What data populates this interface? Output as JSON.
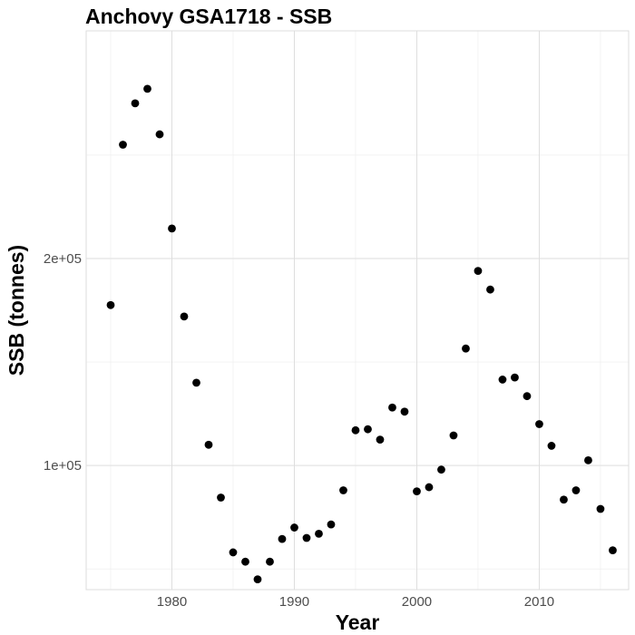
{
  "chart_data": {
    "type": "scatter",
    "title": "Anchovy GSA1718 - SSB",
    "xlabel": "Year",
    "ylabel": "SSB (tonnes)",
    "x_ticks": [
      1980,
      1990,
      2000,
      2010
    ],
    "x_tick_labels": [
      "1980",
      "1990",
      "2000",
      "2010"
    ],
    "y_ticks": [
      100000,
      200000
    ],
    "y_tick_labels": [
      "1e+05",
      "2e+05"
    ],
    "xlim": [
      1973,
      2017.3
    ],
    "ylim": [
      40000,
      310000
    ],
    "grid": true,
    "point_color": "#000000",
    "x": [
      1975,
      1976,
      1977,
      1978,
      1979,
      1980,
      1981,
      1982,
      1983,
      1984,
      1985,
      1986,
      1987,
      1988,
      1989,
      1990,
      1991,
      1992,
      1993,
      1994,
      1995,
      1996,
      1997,
      1998,
      1999,
      2000,
      2001,
      2002,
      2003,
      2004,
      2005,
      2006,
      2007,
      2008,
      2009,
      2010,
      2011,
      2012,
      2013,
      2014,
      2015,
      2016
    ],
    "y": [
      177500,
      255000,
      275000,
      282000,
      260000,
      214500,
      172000,
      140000,
      110000,
      84500,
      58000,
      53500,
      45000,
      53500,
      64500,
      70000,
      65000,
      67000,
      71500,
      88000,
      117000,
      117500,
      112500,
      128000,
      126000,
      87500,
      89500,
      98000,
      114500,
      156500,
      194000,
      185000,
      141500,
      142500,
      133500,
      120000,
      109500,
      83500,
      88000,
      102500,
      79000,
      59000
    ]
  }
}
